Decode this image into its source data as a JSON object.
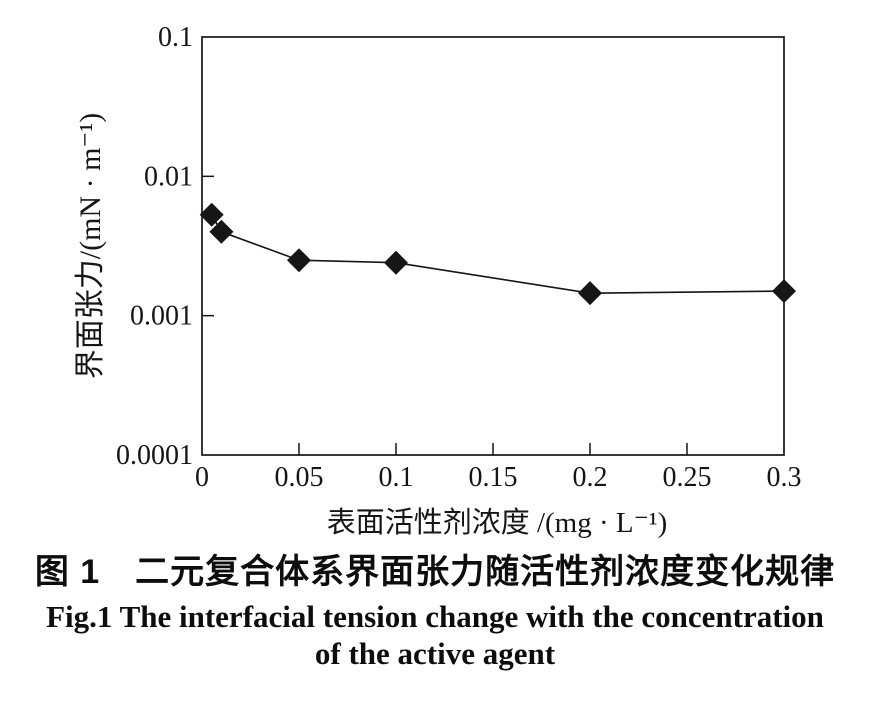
{
  "page": {
    "background": "#ffffff",
    "ink_color": "#161616"
  },
  "chart_data": {
    "type": "line",
    "title": "",
    "xlabel": "表面活性剂浓度 /(mg · L⁻¹)",
    "ylabel": "界面张力/(mN · m⁻¹)",
    "x_scale": "linear",
    "y_scale": "log",
    "xlim": [
      0,
      0.3
    ],
    "ylim": [
      0.0001,
      0.1
    ],
    "grid": false,
    "legend": "none",
    "x_tick_values": [
      0,
      0.05,
      0.1,
      0.15,
      0.2,
      0.25,
      0.3
    ],
    "x_ticks": [
      "0",
      "0.05",
      "0.1",
      "0.15",
      "0.2",
      "0.25",
      "0.3"
    ],
    "y_tick_values": [
      0.1,
      0.01,
      0.001,
      0.0001
    ],
    "y_ticks": [
      "0.1",
      "0.01",
      "0.001",
      "0.0001"
    ],
    "series": [
      {
        "name": "界面张力",
        "marker": "diamond",
        "color": "#161616",
        "x": [
          0.005,
          0.01,
          0.05,
          0.1,
          0.2,
          0.3
        ],
        "y": [
          0.0053,
          0.004,
          0.0025,
          0.0024,
          0.00145,
          0.0015
        ]
      }
    ]
  },
  "caption": {
    "zh": "图 1　二元复合体系界面张力随活性剂浓度变化规律",
    "en_line1": "Fig.1 The interfacial tension change with the concentration",
    "en_line2": "of the active agent"
  }
}
